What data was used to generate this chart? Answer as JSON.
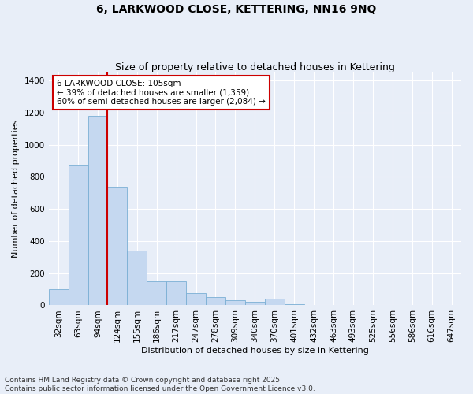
{
  "title": "6, LARKWOOD CLOSE, KETTERING, NN16 9NQ",
  "subtitle": "Size of property relative to detached houses in Kettering",
  "xlabel": "Distribution of detached houses by size in Kettering",
  "ylabel": "Number of detached properties",
  "categories": [
    "32sqm",
    "63sqm",
    "94sqm",
    "124sqm",
    "155sqm",
    "186sqm",
    "217sqm",
    "247sqm",
    "278sqm",
    "309sqm",
    "340sqm",
    "370sqm",
    "401sqm",
    "432sqm",
    "463sqm",
    "493sqm",
    "525sqm",
    "556sqm",
    "586sqm",
    "616sqm",
    "647sqm"
  ],
  "values": [
    100,
    870,
    1180,
    740,
    340,
    150,
    150,
    75,
    50,
    30,
    20,
    40,
    5,
    0,
    0,
    0,
    0,
    0,
    0,
    0,
    0
  ],
  "bar_color": "#c5d8f0",
  "bar_edgecolor": "#7aafd4",
  "vline_x_idx": 2.5,
  "vline_color": "#cc0000",
  "annotation_text": "6 LARKWOOD CLOSE: 105sqm\n← 39% of detached houses are smaller (1,359)\n60% of semi-detached houses are larger (2,084) →",
  "annotation_box_facecolor": "#ffffff",
  "annotation_box_edgecolor": "#cc0000",
  "ylim": [
    0,
    1450
  ],
  "yticks": [
    0,
    200,
    400,
    600,
    800,
    1000,
    1200,
    1400
  ],
  "bg_color": "#e8eef8",
  "grid_color": "#ffffff",
  "footer": "Contains HM Land Registry data © Crown copyright and database right 2025.\nContains public sector information licensed under the Open Government Licence v3.0.",
  "title_fontsize": 10,
  "subtitle_fontsize": 9,
  "axis_label_fontsize": 8,
  "tick_fontsize": 7.5,
  "annotation_fontsize": 7.5,
  "footer_fontsize": 6.5
}
